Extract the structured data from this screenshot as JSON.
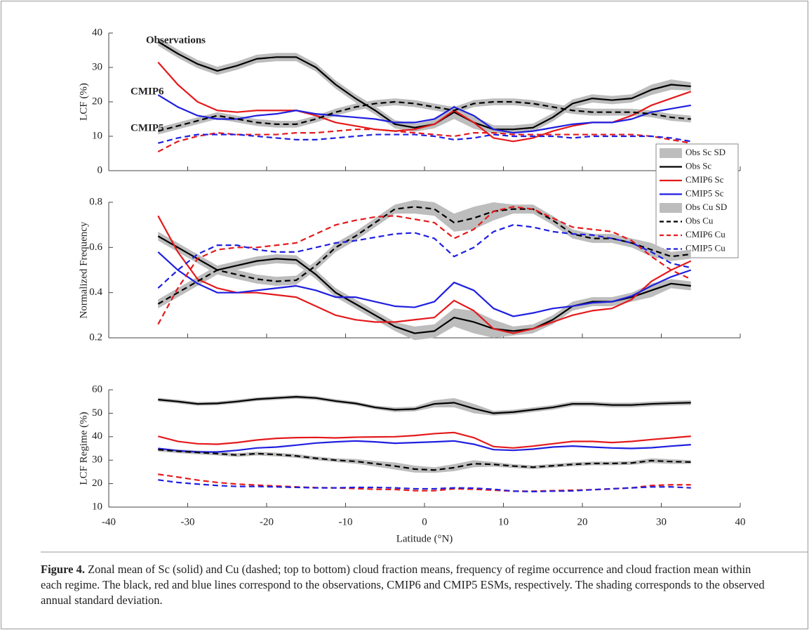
{
  "chart_data": [
    {
      "type": "line",
      "ylabel": "LCF (%)",
      "x": [
        -33.75,
        -31.25,
        -28.75,
        -26.25,
        -23.75,
        -21.25,
        -18.75,
        -16.25,
        -13.75,
        -11.25,
        -8.75,
        -6.25,
        -3.75,
        -1.25,
        1.25,
        3.75,
        6.25,
        8.75,
        11.25,
        13.75,
        16.25,
        18.75,
        21.25,
        23.75,
        26.25,
        28.75,
        31.25,
        33.75
      ],
      "xlim": [
        -40,
        40
      ],
      "xticks": [
        -40,
        -30,
        -20,
        -10,
        0,
        10,
        20,
        30,
        40
      ],
      "ylim": [
        0,
        40
      ],
      "yticks": [
        0,
        10,
        20,
        30,
        40
      ],
      "legend": true,
      "annotations": [
        {
          "text": "Observations",
          "color": "#000000"
        },
        {
          "text": "CMIP6",
          "color": "#e41a1c"
        },
        {
          "text": "CMIP5",
          "color": "#1f1fe0"
        }
      ],
      "series": [
        {
          "name": "Obs Sc",
          "color": "#000000",
          "dashed": false,
          "values": [
            37.5,
            34,
            31,
            29,
            30.5,
            32.5,
            33,
            33,
            30,
            25,
            21,
            17.5,
            13.5,
            12.5,
            13.5,
            17,
            14,
            12,
            12,
            12.5,
            15.5,
            19.5,
            21,
            20.5,
            21,
            23.5,
            25,
            24.5
          ],
          "sd": {
            "name": "Obs Sc SD",
            "color": "#bdbdbd",
            "values": [
              1.2,
              1.2,
              1.2,
              1.2,
              1.2,
              1.2,
              1.2,
              1.2,
              1.2,
              1.2,
              1.2,
              1.2,
              1.2,
              1.2,
              1.2,
              2,
              1.8,
              1.2,
              1.2,
              1.2,
              1.2,
              1.2,
              1.2,
              1.2,
              1.2,
              1.5,
              1.5,
              1.2
            ]
          }
        },
        {
          "name": "CMIP6 Sc",
          "color": "#e41a1c",
          "dashed": false,
          "values": [
            31.5,
            25,
            20,
            17.5,
            17,
            17.5,
            17.5,
            17.5,
            16,
            14,
            13,
            12,
            11.5,
            12,
            13.5,
            17.5,
            14,
            9.5,
            8.5,
            9.5,
            11.5,
            13,
            14,
            14,
            16,
            19,
            21,
            23
          ]
        },
        {
          "name": "CMIP5 Sc",
          "color": "#1f1fe0",
          "dashed": false,
          "values": [
            22,
            18.5,
            16,
            15,
            15,
            16,
            16.5,
            17.5,
            16.5,
            16,
            15.5,
            15,
            14,
            14,
            15,
            18.5,
            16,
            12,
            11,
            11.5,
            12.5,
            13.5,
            14,
            14,
            15,
            17,
            18,
            19
          ]
        },
        {
          "name": "Obs Cu",
          "color": "#000000",
          "dashed": true,
          "values": [
            11.5,
            13,
            14.5,
            16,
            15,
            14,
            13.5,
            13.5,
            15,
            17,
            18.5,
            19.5,
            20,
            19.5,
            18.5,
            17.5,
            19.5,
            20,
            20,
            19.5,
            18.5,
            17.5,
            17,
            17,
            17,
            16.5,
            15.5,
            15
          ],
          "sd": {
            "name": "Obs Cu SD",
            "color": "#bdbdbd",
            "values": [
              1,
              1,
              1,
              1,
              1,
              1,
              1,
              1,
              1,
              1,
              1,
              1,
              1,
              1,
              1,
              1,
              1,
              1,
              1,
              1,
              1,
              1,
              1,
              1,
              1,
              1,
              1,
              1
            ]
          }
        },
        {
          "name": "CMIP6 Cu",
          "color": "#e41a1c",
          "dashed": true,
          "values": [
            5.5,
            8.5,
            10,
            11,
            10.5,
            10.5,
            10.5,
            11,
            11,
            11.5,
            12,
            12,
            11.5,
            11,
            10.5,
            10,
            11,
            11,
            10.5,
            10.5,
            10.5,
            10.5,
            10.5,
            10.5,
            10.5,
            10,
            9,
            8
          ]
        },
        {
          "name": "CMIP5 Cu",
          "color": "#1f1fe0",
          "dashed": true,
          "values": [
            8,
            9.5,
            10.5,
            10.5,
            10.5,
            10,
            9.5,
            9,
            9,
            9.5,
            10,
            10.5,
            10.5,
            10.5,
            10,
            9,
            9.5,
            10.5,
            10,
            10,
            10,
            9.5,
            10,
            10,
            10,
            10,
            9.5,
            8.5
          ]
        }
      ]
    },
    {
      "type": "line",
      "ylabel": "Normalized Frequency",
      "x": [
        -33.75,
        -31.25,
        -28.75,
        -26.25,
        -23.75,
        -21.25,
        -18.75,
        -16.25,
        -13.75,
        -11.25,
        -8.75,
        -6.25,
        -3.75,
        -1.25,
        1.25,
        3.75,
        6.25,
        8.75,
        11.25,
        13.75,
        16.25,
        18.75,
        21.25,
        23.75,
        26.25,
        28.75,
        31.25,
        33.75
      ],
      "xlim": [
        -40,
        40
      ],
      "xticks": [
        -40,
        -30,
        -20,
        -10,
        0,
        10,
        20,
        30,
        40
      ],
      "ylim": [
        0.2,
        0.8
      ],
      "yticks": [
        0.2,
        0.4,
        0.6,
        0.8
      ],
      "series": [
        {
          "color": "#000000",
          "dashed": false,
          "values": [
            0.65,
            0.6,
            0.55,
            0.5,
            0.52,
            0.54,
            0.55,
            0.545,
            0.48,
            0.4,
            0.35,
            0.3,
            0.25,
            0.22,
            0.23,
            0.29,
            0.27,
            0.24,
            0.23,
            0.24,
            0.28,
            0.34,
            0.36,
            0.36,
            0.38,
            0.41,
            0.44,
            0.43
          ],
          "sd": {
            "color": "#bdbdbd",
            "values": [
              0.02,
              0.02,
              0.02,
              0.02,
              0.02,
              0.02,
              0.02,
              0.02,
              0.02,
              0.02,
              0.02,
              0.02,
              0.02,
              0.03,
              0.03,
              0.04,
              0.05,
              0.04,
              0.02,
              0.02,
              0.02,
              0.02,
              0.02,
              0.02,
              0.02,
              0.03,
              0.02,
              0.02
            ]
          }
        },
        {
          "color": "#e41a1c",
          "dashed": false,
          "values": [
            0.74,
            0.58,
            0.46,
            0.42,
            0.4,
            0.4,
            0.39,
            0.38,
            0.34,
            0.3,
            0.28,
            0.27,
            0.27,
            0.28,
            0.29,
            0.365,
            0.32,
            0.24,
            0.22,
            0.24,
            0.27,
            0.3,
            0.32,
            0.33,
            0.37,
            0.45,
            0.5,
            0.54
          ]
        },
        {
          "color": "#1f1fe0",
          "dashed": false,
          "values": [
            0.58,
            0.5,
            0.44,
            0.4,
            0.4,
            0.41,
            0.42,
            0.43,
            0.41,
            0.38,
            0.38,
            0.36,
            0.34,
            0.335,
            0.36,
            0.445,
            0.41,
            0.33,
            0.295,
            0.31,
            0.33,
            0.34,
            0.355,
            0.36,
            0.385,
            0.43,
            0.47,
            0.5
          ]
        },
        {
          "color": "#000000",
          "dashed": true,
          "values": [
            0.35,
            0.4,
            0.45,
            0.5,
            0.48,
            0.46,
            0.45,
            0.455,
            0.52,
            0.6,
            0.65,
            0.71,
            0.77,
            0.78,
            0.77,
            0.71,
            0.73,
            0.76,
            0.77,
            0.77,
            0.72,
            0.66,
            0.64,
            0.64,
            0.62,
            0.59,
            0.56,
            0.57
          ],
          "sd": {
            "color": "#bdbdbd",
            "values": [
              0.02,
              0.02,
              0.02,
              0.02,
              0.02,
              0.02,
              0.02,
              0.02,
              0.02,
              0.02,
              0.02,
              0.02,
              0.02,
              0.03,
              0.03,
              0.04,
              0.05,
              0.04,
              0.02,
              0.02,
              0.02,
              0.02,
              0.02,
              0.02,
              0.02,
              0.03,
              0.02,
              0.02
            ]
          }
        },
        {
          "color": "#e41a1c",
          "dashed": true,
          "values": [
            0.26,
            0.42,
            0.55,
            0.59,
            0.6,
            0.6,
            0.61,
            0.62,
            0.66,
            0.7,
            0.72,
            0.735,
            0.74,
            0.725,
            0.71,
            0.64,
            0.68,
            0.76,
            0.78,
            0.77,
            0.73,
            0.69,
            0.68,
            0.67,
            0.63,
            0.56,
            0.5,
            0.46
          ]
        },
        {
          "color": "#1f1fe0",
          "dashed": true,
          "values": [
            0.42,
            0.5,
            0.57,
            0.61,
            0.61,
            0.59,
            0.58,
            0.58,
            0.6,
            0.62,
            0.63,
            0.645,
            0.66,
            0.665,
            0.64,
            0.56,
            0.6,
            0.67,
            0.7,
            0.69,
            0.67,
            0.66,
            0.655,
            0.64,
            0.62,
            0.58,
            0.53,
            0.51
          ]
        }
      ]
    },
    {
      "type": "line",
      "ylabel": "LCF Regime (%)",
      "xlabel": "Latitude (°N)",
      "xtick_labels": true,
      "x": [
        -33.75,
        -31.25,
        -28.75,
        -26.25,
        -23.75,
        -21.25,
        -18.75,
        -16.25,
        -13.75,
        -11.25,
        -8.75,
        -6.25,
        -3.75,
        -1.25,
        1.25,
        3.75,
        6.25,
        8.75,
        11.25,
        13.75,
        16.25,
        18.75,
        21.25,
        23.75,
        26.25,
        28.75,
        31.25,
        33.75
      ],
      "xlim": [
        -40,
        40
      ],
      "xticks": [
        -40,
        -30,
        -20,
        -10,
        0,
        10,
        20,
        30,
        40
      ],
      "ylim": [
        10,
        60
      ],
      "yticks": [
        10,
        20,
        30,
        40,
        50,
        60
      ],
      "series": [
        {
          "color": "#000000",
          "dashed": false,
          "values": [
            55.8,
            55,
            54,
            54.2,
            55,
            56,
            56.5,
            57,
            56.5,
            55.2,
            54.2,
            52.5,
            51.5,
            51.8,
            54,
            54.5,
            52,
            50,
            50.5,
            51.5,
            52.5,
            54,
            54,
            53.5,
            53.5,
            54,
            54.3,
            54.5
          ],
          "sd": {
            "color": "#bdbdbd",
            "values": [
              0.8,
              0.8,
              0.8,
              0.8,
              0.8,
              0.8,
              0.8,
              0.8,
              0.8,
              0.8,
              0.8,
              0.8,
              1,
              1,
              1.5,
              2,
              2,
              1,
              1,
              1,
              1,
              1,
              1,
              1,
              1,
              1,
              1,
              1
            ]
          }
        },
        {
          "color": "#e41a1c",
          "dashed": false,
          "values": [
            40.2,
            38,
            37,
            36.8,
            37.5,
            38.6,
            39.3,
            39.6,
            39.7,
            39.5,
            39.8,
            39.9,
            40,
            40.5,
            41.3,
            41.8,
            39.6,
            35.8,
            35.2,
            36,
            37,
            38,
            38,
            37.5,
            38,
            38.8,
            39.5,
            40.2
          ]
        },
        {
          "color": "#1f1fe0",
          "dashed": false,
          "values": [
            35,
            34,
            33.5,
            33.5,
            34.2,
            35.2,
            35.6,
            36.4,
            37.3,
            37.8,
            38.2,
            37.8,
            37.2,
            37.5,
            37.8,
            38.2,
            36.8,
            34.5,
            34.2,
            34.7,
            35.6,
            36,
            35.6,
            35.2,
            35,
            35.3,
            36,
            36.6
          ]
        },
        {
          "color": "#000000",
          "dashed": true,
          "values": [
            34.5,
            33.8,
            33.3,
            32.8,
            32.2,
            32.8,
            32.4,
            31.8,
            30.8,
            30,
            29.5,
            28.5,
            27.5,
            26.2,
            25.8,
            26.8,
            28.5,
            28.2,
            27.5,
            27,
            27.6,
            28.2,
            28.6,
            28.6,
            28.8,
            29.8,
            29.4,
            29.2
          ],
          "sd": {
            "color": "#bdbdbd",
            "values": [
              0.8,
              0.8,
              0.8,
              0.8,
              0.8,
              0.8,
              0.8,
              0.8,
              0.8,
              0.8,
              1,
              1.2,
              1.5,
              1.5,
              1.2,
              1.5,
              1.5,
              1,
              0.8,
              0.8,
              0.8,
              0.8,
              0.8,
              0.8,
              0.8,
              1,
              1,
              0.8
            ]
          }
        },
        {
          "color": "#e41a1c",
          "dashed": true,
          "values": [
            24,
            22.8,
            21.5,
            20.5,
            19.8,
            19.4,
            19,
            18.6,
            18.3,
            18.2,
            17.9,
            17.6,
            17.5,
            17,
            17,
            17.8,
            17.6,
            17.2,
            16.8,
            16.8,
            17,
            17.2,
            17.4,
            17.8,
            18.2,
            19.2,
            19.5,
            19.5
          ]
        },
        {
          "color": "#1f1fe0",
          "dashed": true,
          "values": [
            21.6,
            20.5,
            19.8,
            19.2,
            18.8,
            18.8,
            18.6,
            18.4,
            18.2,
            18.2,
            18.4,
            18.4,
            18.2,
            17.8,
            17.8,
            18.2,
            18.1,
            17.6,
            16.8,
            16.6,
            16.8,
            16.9,
            17.4,
            17.8,
            18.2,
            18.6,
            18.6,
            18.2
          ]
        }
      ]
    }
  ],
  "caption": {
    "label": "Figure 4.",
    "text": "Zonal mean of Sc (solid) and Cu (dashed; top to bottom) cloud fraction means, frequency of regime occurrence and cloud fraction mean within each regime. The black, red and blue lines correspond to the observations, CMIP6 and CMIP5 ESMs, respectively. The shading corresponds to the observed annual standard deviation."
  }
}
